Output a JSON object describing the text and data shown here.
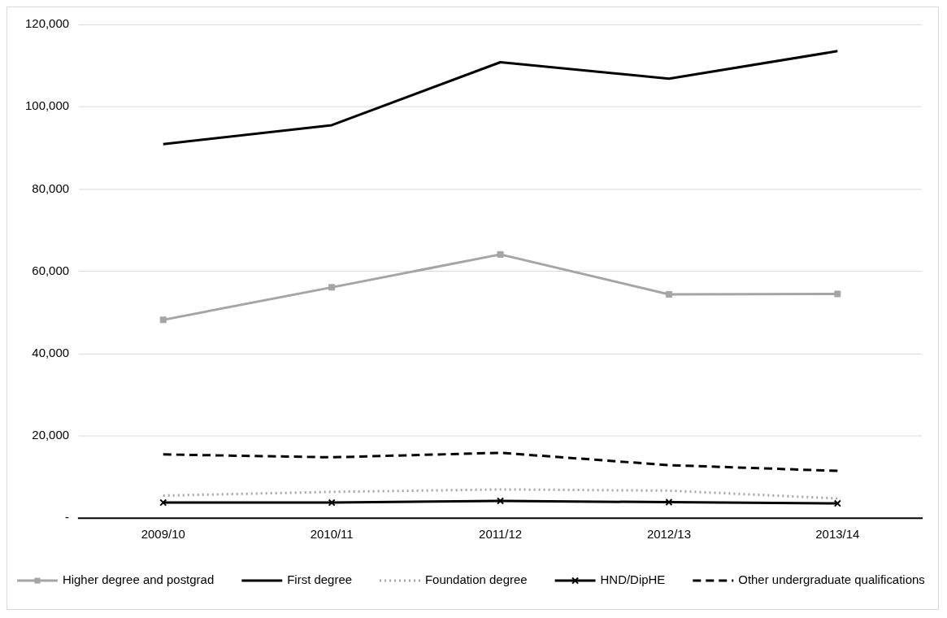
{
  "chart_data": {
    "type": "line",
    "categories": [
      "2009/10",
      "2010/11",
      "2011/12",
      "2012/13",
      "2013/14"
    ],
    "series": [
      {
        "name": "Higher degree and postgrad",
        "color": "#a5a5a5",
        "marker": "square",
        "line_style": "solid",
        "values": [
          48200,
          56100,
          64100,
          54400,
          54500
        ]
      },
      {
        "name": "First degree",
        "color": "#000000",
        "marker": "none",
        "line_style": "solid",
        "values": [
          90900,
          95500,
          110800,
          106800,
          113500
        ]
      },
      {
        "name": "Foundation degree",
        "color": "#a5a5a5",
        "marker": "none",
        "line_style": "dotted",
        "values": [
          5500,
          6400,
          7000,
          6700,
          4800
        ]
      },
      {
        "name": "HND/DipHE",
        "color": "#000000",
        "marker": "cross",
        "line_style": "solid",
        "values": [
          3800,
          3800,
          4200,
          3900,
          3600
        ]
      },
      {
        "name": "Other undergraduate qualifications",
        "color": "#000000",
        "marker": "none",
        "line_style": "dashed",
        "values": [
          15500,
          14800,
          15900,
          12900,
          11500
        ]
      }
    ],
    "ylim": [
      0,
      120000
    ],
    "yticks": [
      {
        "value": 0,
        "label": "-"
      },
      {
        "value": 20000,
        "label": "20,000"
      },
      {
        "value": 40000,
        "label": "40,000"
      },
      {
        "value": 60000,
        "label": "60,000"
      },
      {
        "value": 80000,
        "label": "80,000"
      },
      {
        "value": 100000,
        "label": "100,000"
      },
      {
        "value": 120000,
        "label": "120,000"
      }
    ],
    "grid": "y",
    "legend": "bottom"
  }
}
